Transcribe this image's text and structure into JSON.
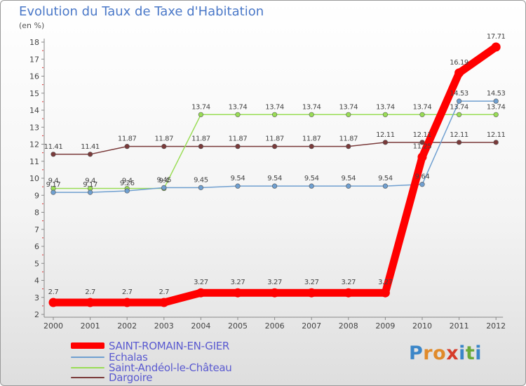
{
  "chart_data": {
    "type": "line",
    "title": "Evolution du Taux de Taxe d'Habitation",
    "subtitle": "(en %)",
    "categories": [
      "2000",
      "2001",
      "2002",
      "2003",
      "2004",
      "2005",
      "2006",
      "2007",
      "2008",
      "2009",
      "2010",
      "2011",
      "2012"
    ],
    "ylim": [
      2,
      18
    ],
    "yticks": [
      2,
      3,
      4,
      5,
      6,
      7,
      8,
      9,
      10,
      11,
      12,
      13,
      14,
      15,
      16,
      17,
      18
    ],
    "grid": false,
    "legend_position": "bottom-left",
    "series": [
      {
        "name": "SAINT-ROMAIN-EN-GIER",
        "color": "#ff0000",
        "values": [
          2.7,
          2.7,
          2.7,
          2.7,
          3.27,
          3.27,
          3.27,
          3.27,
          3.27,
          3.27,
          11.25,
          16.19,
          17.71
        ],
        "labels": [
          "2.7",
          "2.7",
          "2.7",
          "2.7",
          "3.27",
          "3.27",
          "3.27",
          "3.27",
          "3.27",
          "3.27",
          "11.25",
          "16.19",
          "17.71"
        ]
      },
      {
        "name": "Echalas",
        "color": "#6f9fd0",
        "values": [
          9.17,
          9.17,
          9.26,
          9.45,
          9.45,
          9.54,
          9.54,
          9.54,
          9.54,
          9.54,
          9.64,
          14.53,
          14.53
        ],
        "labels": [
          "9.17",
          "9.17",
          "9.26",
          "9.45",
          "9.45",
          "9.54",
          "9.54",
          "9.54",
          "9.54",
          "9.54",
          "9.64",
          "14.53",
          "14.53"
        ]
      },
      {
        "name": "Saint-Andéol-le-Château",
        "color": "#99dd55",
        "values": [
          9.4,
          9.4,
          9.4,
          9.4,
          13.74,
          13.74,
          13.74,
          13.74,
          13.74,
          13.74,
          13.74,
          13.74,
          13.74
        ],
        "labels": [
          "9.4",
          "9.4",
          "9.4",
          "9.4",
          "13.74",
          "13.74",
          "13.74",
          "13.74",
          "13.74",
          "13.74",
          "13.74",
          "13.74",
          "13.74"
        ]
      },
      {
        "name": "Dargoire",
        "color": "#7a3a3a",
        "values": [
          11.41,
          11.41,
          11.87,
          11.87,
          11.87,
          11.87,
          11.87,
          11.87,
          11.87,
          12.11,
          12.11,
          12.11,
          12.11
        ],
        "labels": [
          "11.41",
          "11.41",
          "11.87",
          "11.87",
          "11.87",
          "11.87",
          "11.87",
          "11.87",
          "11.87",
          "12.11",
          "12.11",
          "12.11",
          "12.11"
        ]
      }
    ]
  },
  "logo": {
    "letters": [
      "P",
      "r",
      "o",
      "x",
      "i",
      "t",
      "i"
    ],
    "colors": [
      "#3b86c8",
      "#e08a2a",
      "#e08a2a",
      "#d63b2a",
      "#3b86c8",
      "#6aaa3a",
      "#3b86c8"
    ]
  }
}
